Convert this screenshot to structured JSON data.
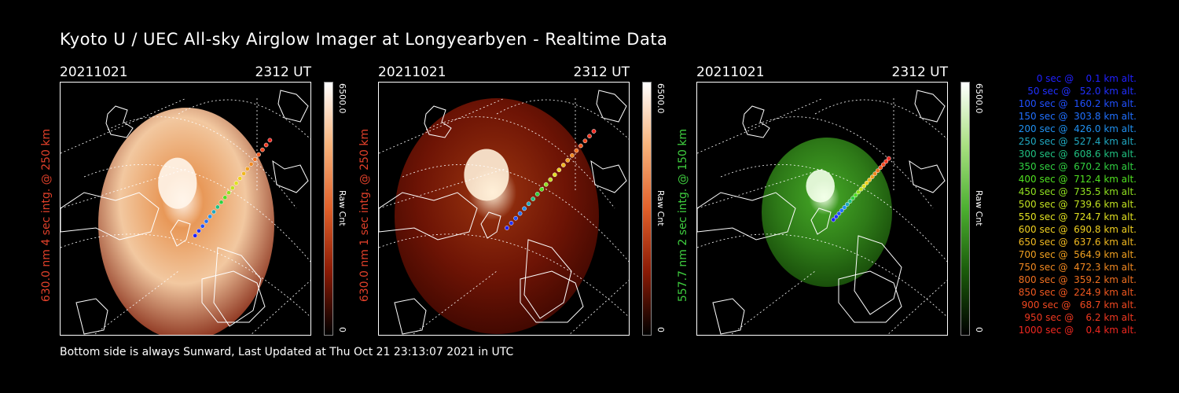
{
  "title": "Kyoto U / UEC All-sky Airglow Imager at Longyearbyen - Realtime Data",
  "footer": "Bottom side is always Sunward, Last Updated at Thu Oct 21 23:13:07 2021 in UTC",
  "panels": [
    {
      "date": "20211021",
      "time": "2312 UT",
      "label": "630.0 nm 4 sec intg. @ 250 km",
      "label_color": "#e0402a",
      "cbar_max": "6500.0",
      "cbar_unit": "Raw Cnt",
      "cbar_min": "0",
      "scheme": "orange-light"
    },
    {
      "date": "20211021",
      "time": "2312 UT",
      "label": "630.0 nm 1 sec intg. @ 250 km",
      "label_color": "#e0402a",
      "cbar_max": "6500.0",
      "cbar_unit": "Raw Cnt",
      "cbar_min": "0",
      "scheme": "orange-dark"
    },
    {
      "date": "20211021",
      "time": "2312 UT",
      "label": "557.7 nm 2 sec intg. @ 150 km",
      "label_color": "#3fcf3f",
      "cbar_max": "6500.0",
      "cbar_unit": "Raw Cnt",
      "cbar_min": "0",
      "scheme": "green"
    }
  ],
  "legend": [
    {
      "text": "0 sec @    0.1 km alt.",
      "color": "#2020ff"
    },
    {
      "text": "50 sec @   52.0 km alt.",
      "color": "#2030ff"
    },
    {
      "text": "100 sec @  160.2 km alt.",
      "color": "#2050ff"
    },
    {
      "text": "150 sec @  303.8 km alt.",
      "color": "#2070ff"
    },
    {
      "text": "200 sec @  426.0 km alt.",
      "color": "#2090f0"
    },
    {
      "text": "250 sec @  527.4 km alt.",
      "color": "#20a8c0"
    },
    {
      "text": "300 sec @  608.6 km alt.",
      "color": "#20c080"
    },
    {
      "text": "350 sec @  670.2 km alt.",
      "color": "#30d040"
    },
    {
      "text": "400 sec @  712.4 km alt.",
      "color": "#50e020"
    },
    {
      "text": "450 sec @  735.5 km alt.",
      "color": "#90e020"
    },
    {
      "text": "500 sec @  739.6 km alt.",
      "color": "#c0e020"
    },
    {
      "text": "550 sec @  724.7 km alt.",
      "color": "#e0e020"
    },
    {
      "text": "600 sec @  690.8 km alt.",
      "color": "#f0d020"
    },
    {
      "text": "650 sec @  637.6 km alt.",
      "color": "#f0b820"
    },
    {
      "text": "700 sec @  564.9 km alt.",
      "color": "#f0a020"
    },
    {
      "text": "750 sec @  472.3 km alt.",
      "color": "#f08820"
    },
    {
      "text": "800 sec @  359.2 km alt.",
      "color": "#f07020"
    },
    {
      "text": "850 sec @  224.9 km alt.",
      "color": "#f05820"
    },
    {
      "text": "900 sec @   68.7 km alt.",
      "color": "#f04820"
    },
    {
      "text": "950 sec @    6.2 km alt.",
      "color": "#f03820"
    },
    {
      "text": "1000 sec @    0.4 km alt.",
      "color": "#f02820"
    }
  ]
}
